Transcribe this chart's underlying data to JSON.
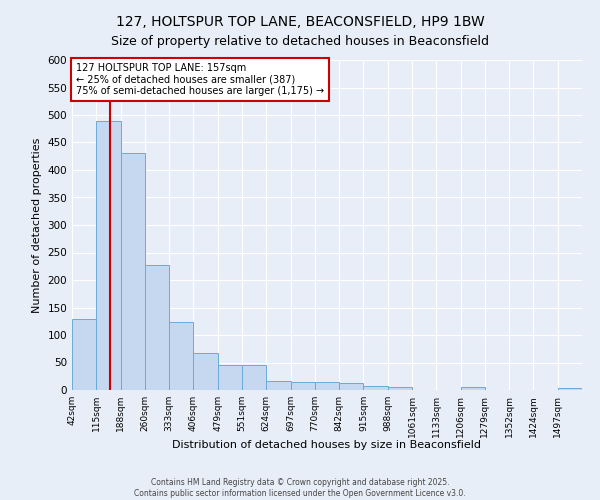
{
  "title": "127, HOLTSPUR TOP LANE, BEACONSFIELD, HP9 1BW",
  "subtitle": "Size of property relative to detached houses in Beaconsfield",
  "xlabel": "Distribution of detached houses by size in Beaconsfield",
  "ylabel": "Number of detached properties",
  "bar_edges": [
    42,
    115,
    188,
    260,
    333,
    406,
    479,
    551,
    624,
    697,
    770,
    842,
    915,
    988,
    1061,
    1133,
    1206,
    1279,
    1352,
    1424,
    1497
  ],
  "bar_heights": [
    130,
    490,
    430,
    228,
    124,
    68,
    46,
    46,
    16,
    15,
    15,
    12,
    7,
    5,
    0,
    0,
    5,
    0,
    0,
    0,
    4
  ],
  "bar_color": "#c5d8f0",
  "bar_edge_color": "#6baad8",
  "property_size": 157,
  "vline_color": "#cc0000",
  "annotation_text": "127 HOLTSPUR TOP LANE: 157sqm\n← 25% of detached houses are smaller (387)\n75% of semi-detached houses are larger (1,175) →",
  "annotation_box_color": "#ffffff",
  "annotation_box_edge_color": "#cc0000",
  "ylim": [
    0,
    600
  ],
  "yticks": [
    0,
    50,
    100,
    150,
    200,
    250,
    300,
    350,
    400,
    450,
    500,
    550,
    600
  ],
  "bg_color": "#e8eef8",
  "grid_color": "#ffffff",
  "title_fontsize": 10,
  "subtitle_fontsize": 9,
  "footer_line1": "Contains HM Land Registry data © Crown copyright and database right 2025.",
  "footer_line2": "Contains public sector information licensed under the Open Government Licence v3.0."
}
